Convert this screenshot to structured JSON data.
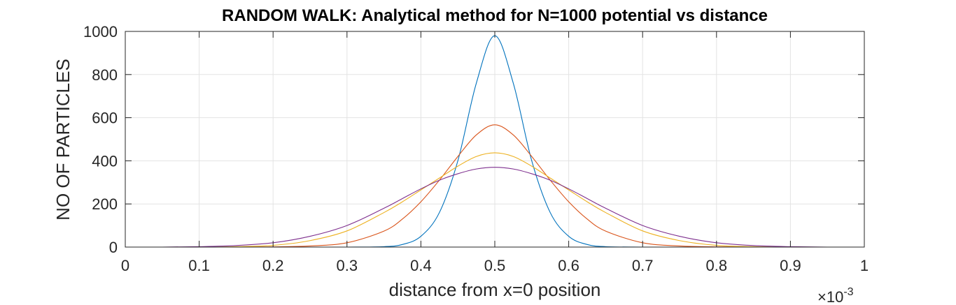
{
  "chart_data": {
    "type": "line",
    "title": "RANDOM WALK: Analytical method for N=1000 potential vs distance",
    "xlabel": "distance from x=0 position",
    "ylabel": "NO OF PARTICLES",
    "x_exponent_base": "×10",
    "x_exponent_power": "-3",
    "xlim": [
      0,
      1
    ],
    "ylim": [
      0,
      1000
    ],
    "x_ticks": [
      0,
      0.1,
      0.2,
      0.3,
      0.4,
      0.5,
      0.6,
      0.7,
      0.8,
      0.9,
      1
    ],
    "x_tick_labels": [
      "0",
      "0.1",
      "0.2",
      "0.3",
      "0.4",
      "0.5",
      "0.6",
      "0.7",
      "0.8",
      "0.9",
      "1"
    ],
    "y_ticks": [
      0,
      200,
      400,
      600,
      800,
      1000
    ],
    "y_tick_labels": [
      "0",
      "200",
      "400",
      "600",
      "800",
      "1000"
    ],
    "grid": true,
    "x": [
      0,
      0.05,
      0.1,
      0.15,
      0.2,
      0.25,
      0.3,
      0.35,
      0.375,
      0.4,
      0.425,
      0.45,
      0.475,
      0.5,
      0.525,
      0.55,
      0.575,
      0.6,
      0.625,
      0.65,
      0.7,
      0.75,
      0.8,
      0.85,
      0.9,
      0.95,
      1
    ],
    "series": [
      {
        "color": "#0072bd",
        "values": [
          0,
          0,
          0,
          0,
          0,
          0,
          0,
          2,
          12,
          50,
          160,
          400,
          760,
          980,
          760,
          400,
          160,
          50,
          12,
          2,
          0,
          0,
          0,
          0,
          0,
          0,
          0
        ]
      },
      {
        "color": "#d95319",
        "values": [
          0,
          0,
          0,
          0,
          1,
          5,
          20,
          74,
          130,
          210,
          310,
          420,
          520,
          567,
          520,
          420,
          310,
          210,
          130,
          74,
          20,
          5,
          1,
          0,
          0,
          0,
          0
        ]
      },
      {
        "color": "#edb120",
        "values": [
          0,
          0,
          0,
          2,
          8,
          30,
          75,
          160,
          210,
          265,
          320,
          375,
          420,
          437,
          420,
          375,
          320,
          265,
          210,
          160,
          75,
          30,
          8,
          2,
          0,
          0,
          0
        ]
      },
      {
        "color": "#7e2f8e",
        "values": [
          0,
          0,
          2,
          7,
          20,
          50,
          100,
          180,
          225,
          270,
          310,
          340,
          362,
          370,
          362,
          340,
          310,
          270,
          225,
          180,
          100,
          50,
          20,
          7,
          2,
          0,
          0
        ]
      }
    ]
  }
}
